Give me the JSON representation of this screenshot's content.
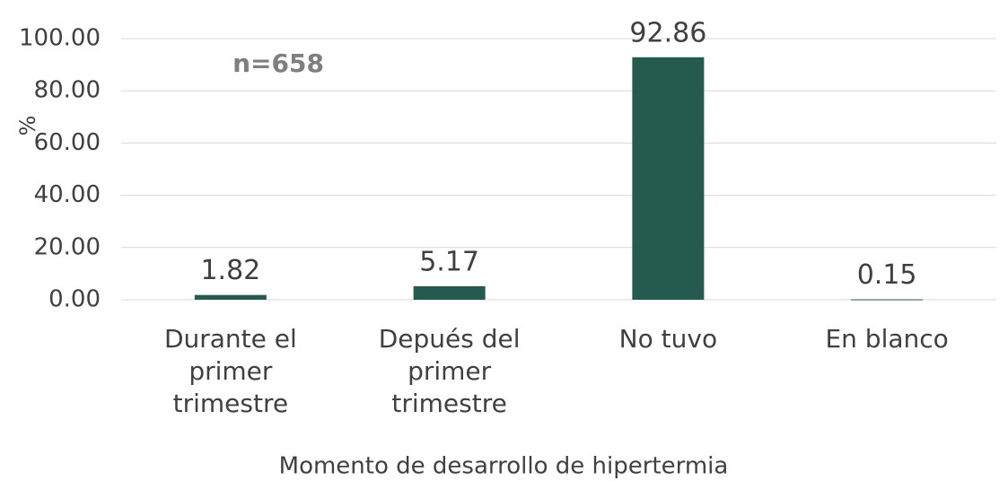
{
  "chart_data": {
    "type": "bar",
    "annotation": "n=658",
    "y_label": "%",
    "x_label": "Momento de desarrollo de hipertermia",
    "categories": [
      "Durante el primer trimestre",
      "Depués del primer trimestre",
      "No tuvo",
      "En blanco"
    ],
    "values": [
      1.82,
      5.17,
      92.86,
      0.15
    ],
    "color": "#245b4e",
    "ylim": [
      0,
      100
    ],
    "yticks": [
      {
        "value": 0,
        "label": "0.00"
      },
      {
        "value": 20,
        "label": "20.00"
      },
      {
        "value": 40,
        "label": "40.00"
      },
      {
        "value": 60,
        "label": "60.00"
      },
      {
        "value": 80,
        "label": "80.00"
      },
      {
        "value": 100,
        "label": "100.00"
      }
    ],
    "grid": true
  }
}
